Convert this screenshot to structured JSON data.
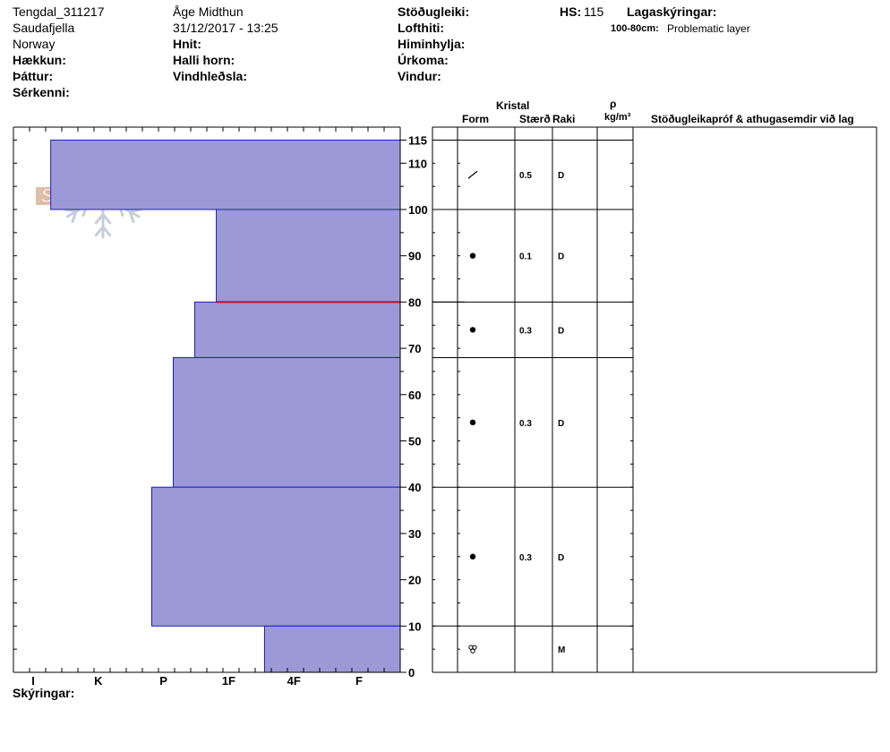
{
  "header": {
    "site_id": "Tengdal_311217",
    "location": "Saudafjella",
    "country": "Norway",
    "observer": "Åge Midthun",
    "datetime": "31/12/2017 - 13:25",
    "elevation_label": "Hækkun:",
    "aspect_label": "Þáttur:",
    "features_label": "Sérkenni:",
    "coords_label": "Hnit:",
    "slope_label": "Halli horn:",
    "wind_loading_label": "Vindhleðsla:",
    "stability_label": "Stöðugleiki:",
    "air_temp_label": "Lofthiti:",
    "sky_label": "Himinhylja:",
    "precip_label": "Úrkoma:",
    "wind_label": "Vindur:",
    "hs_label": "HS:",
    "hs_value": "115",
    "legend_title": "Lagaskýringar:",
    "legend_range": "100-80cm:",
    "legend_text": "Problematic layer"
  },
  "columns": {
    "crystal": "Kristal",
    "form": "Form",
    "size": "Stærð",
    "moisture": "Raki",
    "density_symbol": "ρ",
    "density_unit": "kg/m³",
    "comments": "Stöðugleikapróf & athugasemdir við lag"
  },
  "footer": {
    "legend": "Skýringar:"
  },
  "logo": {
    "text": "SNOW PILOT"
  },
  "colors": {
    "layer_fill": "#9b9ad6",
    "layer_stroke": "#1a1acc",
    "problem_line": "#b0103c",
    "logo": "#d8b49a",
    "flake": "#c6ced8"
  },
  "chart_data": {
    "type": "snow-profile",
    "hardness_scale": [
      "I",
      "K",
      "P",
      "1F",
      "4F",
      "F"
    ],
    "depth_ticks": [
      0,
      10,
      20,
      30,
      40,
      50,
      60,
      70,
      80,
      90,
      100,
      110,
      115
    ],
    "depth_unit": "cm",
    "layers": [
      {
        "top": 115,
        "bottom": 100,
        "hardness": 0.27,
        "form": "precipitation-particle",
        "size": "0.5",
        "moisture": "D"
      },
      {
        "top": 100,
        "bottom": 80,
        "hardness": 2.81,
        "form": "rounded-grain",
        "size": "0.1",
        "moisture": "D"
      },
      {
        "top": 80,
        "bottom": 68,
        "hardness": 2.48,
        "form": "rounded-grain",
        "size": "0.3",
        "moisture": "D"
      },
      {
        "top": 68,
        "bottom": 40,
        "hardness": 2.15,
        "form": "rounded-grain",
        "size": "0.3",
        "moisture": "D"
      },
      {
        "top": 40,
        "bottom": 10,
        "hardness": 1.82,
        "form": "rounded-grain",
        "size": "0.3",
        "moisture": "D"
      },
      {
        "top": 10,
        "bottom": 0,
        "hardness": 3.55,
        "form": "melt-form",
        "size": "",
        "moisture": "M"
      }
    ],
    "problem_layer_depth": 80
  }
}
